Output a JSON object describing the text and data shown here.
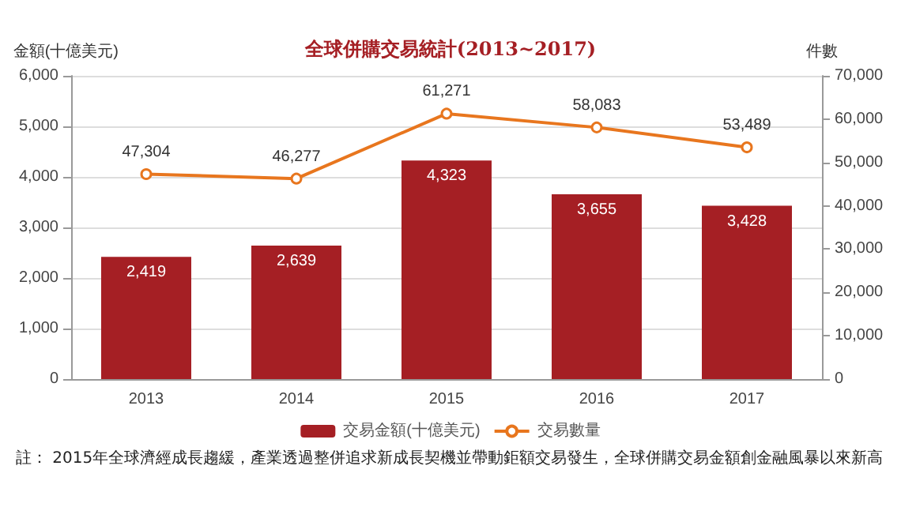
{
  "chart_data": {
    "type": "bar",
    "title": "全球併購交易統計(2013~2017)",
    "ylabel": "金額(十億美元)",
    "y2label": "件數",
    "categories": [
      "2013",
      "2014",
      "2015",
      "2016",
      "2017"
    ],
    "series": [
      {
        "name": "交易金額(十億美元)",
        "color": "#a51f24",
        "values": [
          2419,
          2639,
          4323,
          3655,
          3428
        ],
        "value_labels": [
          "2,419",
          "2,639",
          "4,323",
          "3,655",
          "3,428"
        ]
      },
      {
        "name": "交易數量",
        "type": "line",
        "axis": "y2",
        "color": "#e8761e",
        "values": [
          47304,
          46277,
          61271,
          58083,
          53489
        ],
        "value_labels": [
          "47,304",
          "46,277",
          "61,271",
          "58,083",
          "53,489"
        ],
        "marker": "circle"
      }
    ],
    "ylim": [
      0,
      6000
    ],
    "yticks": [
      0,
      {
        "value": 1000,
        "label": "1,000"
      },
      {
        "value": 2000,
        "label": "2,000"
      },
      {
        "value": 3000,
        "label": "3,000"
      },
      {
        "value": 4000,
        "label": "4,000"
      },
      {
        "value": 5000,
        "label": "5,000"
      },
      {
        "value": 6000,
        "label": "6,000"
      }
    ],
    "y2lim": [
      0,
      70000
    ],
    "y2ticks": [
      0,
      {
        "value": 10000,
        "label": "10,000"
      },
      {
        "value": 20000,
        "label": "20,000"
      },
      {
        "value": 30000,
        "label": "30,000"
      },
      {
        "value": 40000,
        "label": "40,000"
      },
      {
        "value": 50000,
        "label": "50,000"
      },
      {
        "value": 60000,
        "label": "60,000"
      },
      {
        "value": 70000,
        "label": "70,000"
      }
    ],
    "grid": "y",
    "legend": "bottom",
    "annotations": [
      "註： 2015年全球濟經成長趨緩，產業透過整併追求新成長契機並帶動鉅額交易發生，全球併購交易金額創金融風暴以來新高"
    ]
  }
}
